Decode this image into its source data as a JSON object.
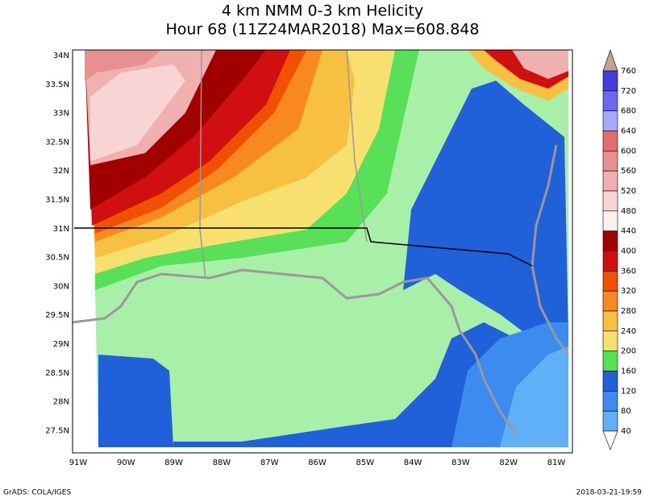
{
  "title": "4 km NMM 0-3 km Helicity",
  "subtitle": "Hour 68 (11Z24MAR2018) Max=608.848",
  "latitude_labels": [
    "34N",
    "33.5N",
    "33N",
    "32.5N",
    "32N",
    "31.5N",
    "31N",
    "30.5N",
    "30N",
    "29.5N",
    "29N",
    "28.5N",
    "28N",
    "27.5N"
  ],
  "longitude_labels": [
    "91W",
    "90W",
    "89W",
    "88W",
    "87W",
    "86W",
    "85W",
    "84W",
    "83W",
    "82W",
    "81W"
  ],
  "colorbar": {
    "levels": [
      760,
      720,
      680,
      640,
      600,
      560,
      520,
      480,
      440,
      400,
      360,
      320,
      280,
      240,
      200,
      160,
      120,
      80,
      40
    ],
    "colors": [
      "#c8a090",
      "#4040d8",
      "#6a6af0",
      "#a8a8ff",
      "#e07070",
      "#e89090",
      "#f0b0b0",
      "#f8d4d4",
      "#fff0f0",
      "#a00000",
      "#d01010",
      "#f05000",
      "#f88820",
      "#f8c040",
      "#f8e070",
      "#58e058",
      "#2060d8",
      "#3c8cf0",
      "#60b0f8",
      "#ffffff"
    ]
  },
  "footer": {
    "left": "GrADS: COLA/IGES",
    "right": "2018-03-21-19:59"
  }
}
